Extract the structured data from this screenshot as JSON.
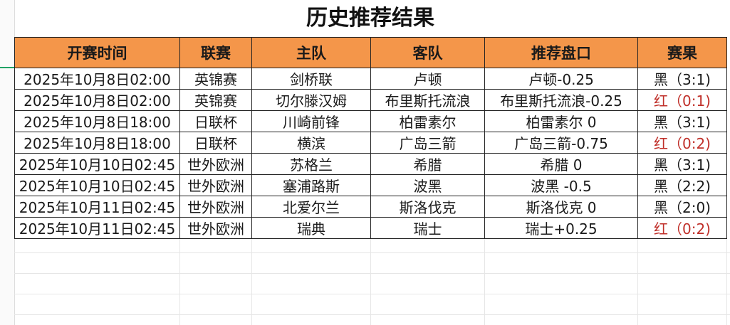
{
  "title": "历史推荐结果",
  "headers": [
    "开赛时间",
    "联赛",
    "主队",
    "客队",
    "推荐盘口",
    "赛果"
  ],
  "rows": [
    {
      "time": "2025年10月8日02:00",
      "league": "英锦赛",
      "home": "剑桥联",
      "away": "卢顿",
      "pick": "卢顿-0.25",
      "result": "黑（3:1)",
      "win": false
    },
    {
      "time": "2025年10月8日02:00",
      "league": "英锦赛",
      "home": "切尔滕汉姆",
      "away": "布里斯托流浪",
      "pick": "布里斯托流浪-0.25",
      "result": "红（0:1)",
      "win": true
    },
    {
      "time": "2025年10月8日18:00",
      "league": "日联杯",
      "home": "川崎前锋",
      "away": "柏雷素尔",
      "pick": "柏雷素尔 0",
      "result": "黑（3:1)",
      "win": false
    },
    {
      "time": "2025年10月8日18:00",
      "league": "日联杯",
      "home": "横滨",
      "away": "广岛三箭",
      "pick": "广岛三箭-0.75",
      "result": "红（0:2)",
      "win": true
    },
    {
      "time": "2025年10月10日02:45",
      "league": "世外欧洲",
      "home": "苏格兰",
      "away": "希腊",
      "pick": "希腊 0",
      "result": "黑（3:1)",
      "win": false
    },
    {
      "time": "2025年10月10日02:45",
      "league": "世外欧洲",
      "home": "塞浦路斯",
      "away": "波黑",
      "pick": "波黑 -0.5",
      "result": "黑（2:2)",
      "win": false
    },
    {
      "time": "2025年10月11日02:45",
      "league": "世外欧洲",
      "home": "北爱尔兰",
      "away": "斯洛伐克",
      "pick": "斯洛伐克 0",
      "result": "黑（2:0)",
      "win": false
    },
    {
      "time": "2025年10月11日02:45",
      "league": "世外欧洲",
      "home": "瑞典",
      "away": "瑞士",
      "pick": "瑞士+0.25",
      "result": "红（0:2)",
      "win": true
    }
  ],
  "colors": {
    "header_bg": "#f4964a",
    "red_result": "#c0302a",
    "selection": "#21a366"
  }
}
